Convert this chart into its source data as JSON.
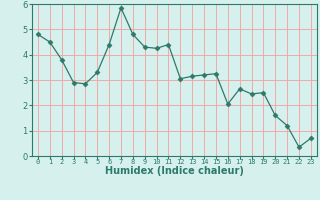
{
  "title": "",
  "xlabel": "Humidex (Indice chaleur)",
  "x_values": [
    0,
    1,
    2,
    3,
    4,
    5,
    6,
    7,
    8,
    9,
    10,
    11,
    12,
    13,
    14,
    15,
    16,
    17,
    18,
    19,
    20,
    21,
    22,
    23
  ],
  "y_values": [
    4.8,
    4.5,
    3.8,
    2.9,
    2.85,
    3.3,
    4.4,
    5.85,
    4.8,
    4.3,
    4.25,
    4.4,
    3.05,
    3.15,
    3.2,
    3.25,
    2.05,
    2.65,
    2.45,
    2.5,
    1.6,
    1.2,
    0.35,
    0.7
  ],
  "line_color": "#2d7a6a",
  "marker": "D",
  "marker_size": 2.5,
  "background_color": "#d6f0ee",
  "grid_color": "#f0a8a8",
  "ylim": [
    0,
    6
  ],
  "xlim": [
    -0.5,
    23.5
  ],
  "yticks": [
    0,
    1,
    2,
    3,
    4,
    5,
    6
  ],
  "xtick_labels": [
    "0",
    "1",
    "2",
    "3",
    "4",
    "5",
    "6",
    "7",
    "8",
    "9",
    "10",
    "11",
    "12",
    "13",
    "14",
    "15",
    "16",
    "17",
    "18",
    "19",
    "20",
    "21",
    "22",
    "23"
  ]
}
